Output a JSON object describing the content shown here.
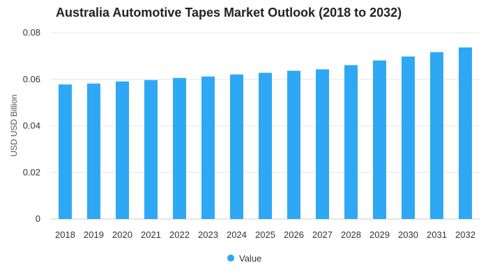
{
  "chart_data": {
    "type": "bar",
    "title": "Australia Automotive Tapes Market Outlook (2018 to 2032)",
    "xlabel": "",
    "ylabel": "USD USD Billion",
    "categories": [
      "2018",
      "2019",
      "2020",
      "2021",
      "2022",
      "2023",
      "2024",
      "2025",
      "2026",
      "2027",
      "2028",
      "2029",
      "2030",
      "2031",
      "2032"
    ],
    "series": [
      {
        "name": "Value",
        "values": [
          0.0578,
          0.0582,
          0.0591,
          0.0597,
          0.0606,
          0.0612,
          0.0621,
          0.0628,
          0.0637,
          0.0643,
          0.0661,
          0.0681,
          0.0698,
          0.0717,
          0.0737
        ]
      }
    ],
    "ylim": [
      0,
      0.08
    ],
    "yticks": [
      "0",
      "0.02",
      "0.04",
      "0.06",
      "0.08"
    ],
    "grid": true,
    "legend_position": "bottom-center",
    "colors": {
      "bar": "#2ea8f5",
      "grid": "#e6e6e6"
    }
  }
}
